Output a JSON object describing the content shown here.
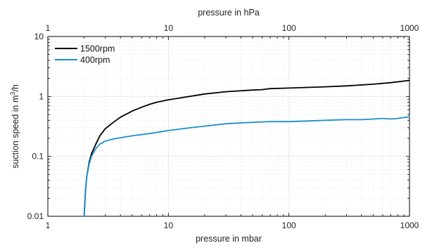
{
  "chart_data": {
    "type": "line",
    "xscale": "log",
    "yscale": "log",
    "xlim": [
      1,
      1000
    ],
    "ylim": [
      0.01,
      10
    ],
    "xlabel": "pressure in mbar",
    "x2label": "pressure in hPa",
    "ylabel_prefix": "suction speed in m",
    "ylabel_sup": "3",
    "ylabel_suffix": "/h",
    "x_ticks": [
      "1",
      "10",
      "100",
      "1000"
    ],
    "x2_ticks": [
      "1",
      "10",
      "100",
      "1000"
    ],
    "y_ticks": [
      "0.01",
      "0.1",
      "1",
      "10"
    ],
    "grid": true,
    "legend_position": "top-left",
    "series": [
      {
        "name": "1500rpm",
        "color": "#000000",
        "x": [
          2.0,
          2.05,
          2.1,
          2.2,
          2.3,
          2.5,
          2.7,
          3.0,
          3.5,
          4.0,
          5.0,
          6.0,
          7.0,
          8.0,
          10.0,
          15.0,
          20.0,
          30.0,
          50.0,
          60.0,
          70.0,
          100.0,
          200.0,
          300.0,
          500.0,
          700.0,
          1000.0
        ],
        "y": [
          0.01,
          0.025,
          0.045,
          0.08,
          0.11,
          0.16,
          0.22,
          0.29,
          0.37,
          0.45,
          0.57,
          0.66,
          0.74,
          0.8,
          0.88,
          1.0,
          1.1,
          1.2,
          1.28,
          1.3,
          1.35,
          1.38,
          1.45,
          1.5,
          1.6,
          1.7,
          1.85
        ]
      },
      {
        "name": "400rpm",
        "color": "#1a8fce",
        "x": [
          2.0,
          2.05,
          2.1,
          2.2,
          2.3,
          2.5,
          2.7,
          3.0,
          3.5,
          4.0,
          5.0,
          7.0,
          10.0,
          15.0,
          20.0,
          30.0,
          50.0,
          70.0,
          100.0,
          150.0,
          200.0,
          300.0,
          400.0,
          500.0,
          600.0,
          700.0,
          800.0,
          1000.0
        ],
        "y": [
          0.01,
          0.025,
          0.045,
          0.075,
          0.1,
          0.135,
          0.16,
          0.18,
          0.195,
          0.205,
          0.22,
          0.24,
          0.27,
          0.3,
          0.32,
          0.35,
          0.37,
          0.38,
          0.38,
          0.39,
          0.4,
          0.41,
          0.41,
          0.42,
          0.43,
          0.42,
          0.43,
          0.46
        ]
      }
    ]
  }
}
